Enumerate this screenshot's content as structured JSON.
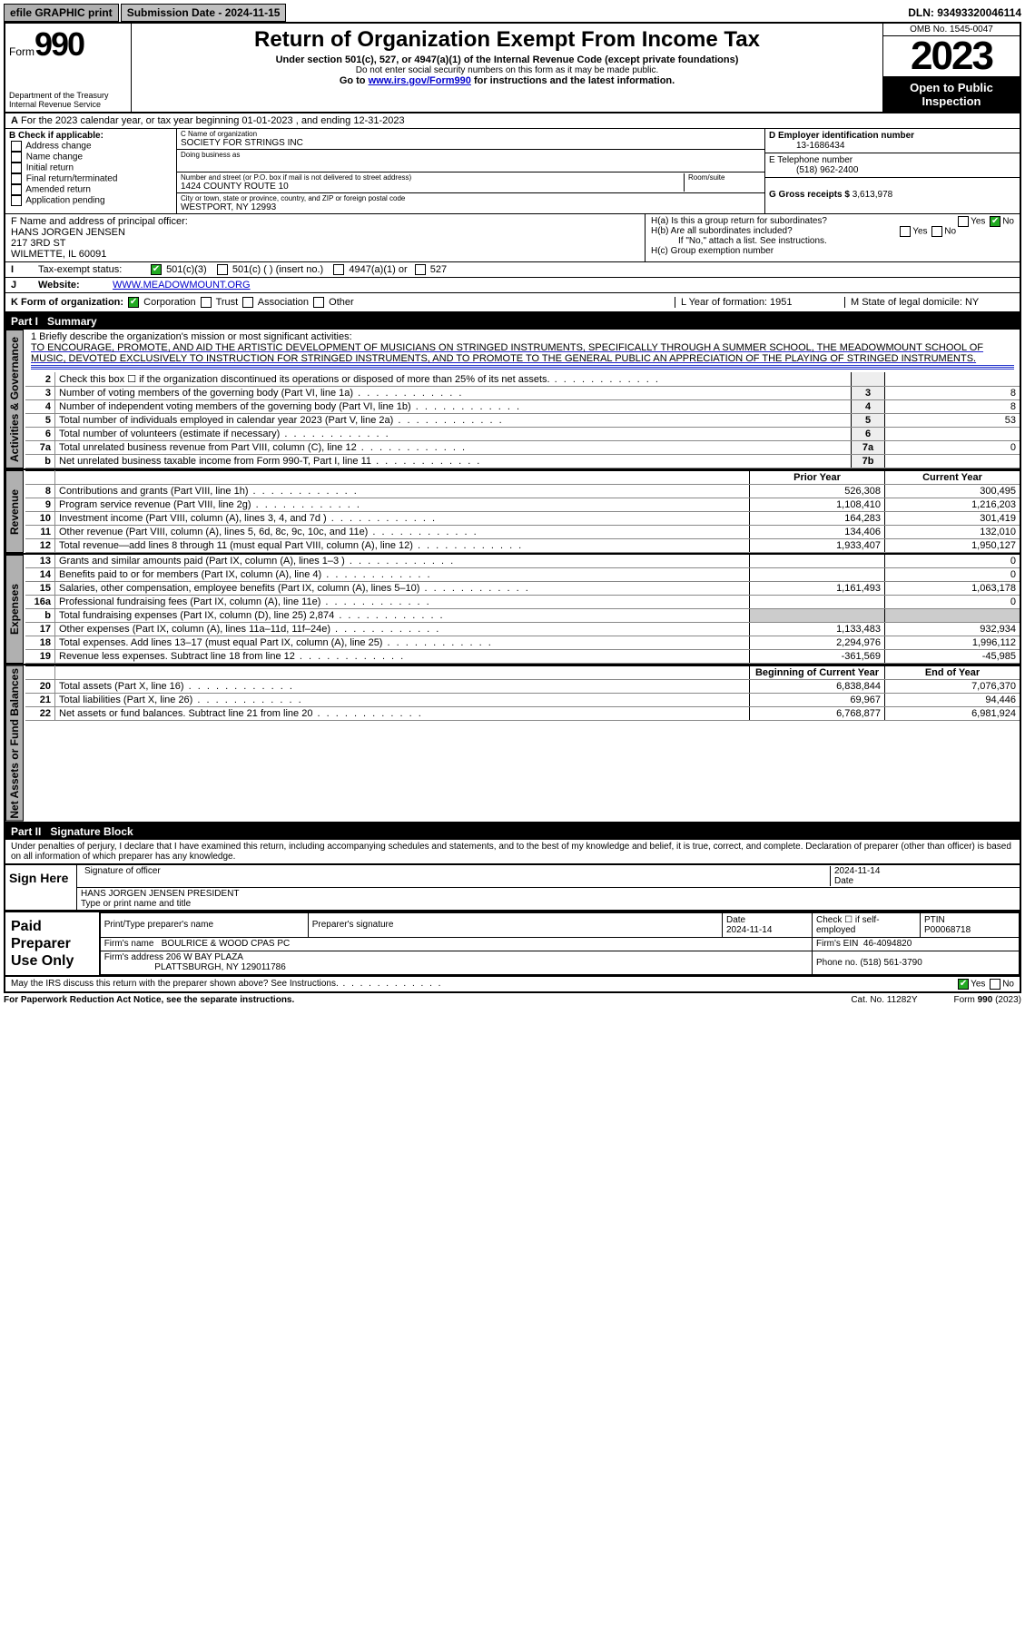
{
  "topbar": {
    "efile": "efile GRAPHIC print",
    "submission": "Submission Date - 2024-11-15",
    "dln": "DLN: 93493320046114"
  },
  "header": {
    "form_prefix": "Form",
    "form_number": "990",
    "dept": "Department of the Treasury",
    "irs": "Internal Revenue Service",
    "title": "Return of Organization Exempt From Income Tax",
    "subtitle": "Under section 501(c), 527, or 4947(a)(1) of the Internal Revenue Code (except private foundations)",
    "sub2": "Do not enter social security numbers on this form as it may be made public.",
    "sub3_pre": "Go to ",
    "sub3_link": "www.irs.gov/Form990",
    "sub3_post": " for instructions and the latest information.",
    "omb": "OMB No. 1545-0047",
    "year": "2023",
    "open": "Open to Public Inspection"
  },
  "line_a": "For the 2023 calendar year, or tax year beginning 01-01-2023   , and ending 12-31-2023",
  "box_b": {
    "title": "B Check if applicable:",
    "opts": [
      "Address change",
      "Name change",
      "Initial return",
      "Final return/terminated",
      "Amended return",
      "Application pending"
    ]
  },
  "box_c": {
    "name_lbl": "C Name of organization",
    "name": "SOCIETY FOR STRINGS INC",
    "dba_lbl": "Doing business as",
    "addr_lbl": "Number and street (or P.O. box if mail is not delivered to street address)",
    "room_lbl": "Room/suite",
    "addr": "1424 COUNTY ROUTE 10",
    "city_lbl": "City or town, state or province, country, and ZIP or foreign postal code",
    "city": "WESTPORT, NY  12993"
  },
  "box_d": {
    "lbl": "D Employer identification number",
    "val": "13-1686434"
  },
  "box_e": {
    "lbl": "E Telephone number",
    "val": "(518) 962-2400"
  },
  "box_g": {
    "lbl": "G Gross receipts $",
    "val": "3,613,978"
  },
  "box_f": {
    "lbl": "F  Name and address of principal officer:",
    "name": "HANS JORGEN JENSEN",
    "addr1": "217 3RD ST",
    "addr2": "WILMETTE, IL  60091"
  },
  "box_h": {
    "ha": "H(a)  Is this a group return for subordinates?",
    "hb": "H(b)  Are all subordinates included?",
    "hb2": "If \"No,\" attach a list. See instructions.",
    "hc": "H(c)  Group exemption number",
    "yes": "Yes",
    "no": "No"
  },
  "row_i": {
    "lbl": "I",
    "tax": "Tax-exempt status:",
    "c1": "501(c)(3)",
    "c2": "501(c) (  ) (insert no.)",
    "c3": "4947(a)(1) or",
    "c4": "527"
  },
  "row_j": {
    "lbl": "J",
    "web": "Website:",
    "val": "WWW.MEADOWMOUNT.ORG"
  },
  "row_k": {
    "lbl": "K Form of organization:",
    "opts": [
      "Corporation",
      "Trust",
      "Association",
      "Other"
    ],
    "l": "L Year of formation: 1951",
    "m": "M State of legal domicile: NY"
  },
  "part1": {
    "label": "Part I",
    "title": "Summary"
  },
  "mission": {
    "q": "1  Briefly describe the organization's mission or most significant activities:",
    "text": "TO ENCOURAGE, PROMOTE, AND AID THE ARTISTIC DEVELOPMENT OF MUSICIANS ON STRINGED INSTRUMENTS, SPECIFICALLY THROUGH A SUMMER SCHOOL, THE MEADOWMOUNT SCHOOL OF MUSIC, DEVOTED EXCLUSIVELY TO INSTRUCTION FOR STRINGED INSTRUMENTS, AND TO PROMOTE TO THE GENERAL PUBLIC AN APPRECIATION OF THE PLAYING OF STRINGED INSTRUMENTS."
  },
  "governance_lines": [
    {
      "n": "2",
      "d": "Check this box ☐ if the organization discontinued its operations or disposed of more than 25% of its net assets.",
      "box": "",
      "v": ""
    },
    {
      "n": "3",
      "d": "Number of voting members of the governing body (Part VI, line 1a)",
      "box": "3",
      "v": "8"
    },
    {
      "n": "4",
      "d": "Number of independent voting members of the governing body (Part VI, line 1b)",
      "box": "4",
      "v": "8"
    },
    {
      "n": "5",
      "d": "Total number of individuals employed in calendar year 2023 (Part V, line 2a)",
      "box": "5",
      "v": "53"
    },
    {
      "n": "6",
      "d": "Total number of volunteers (estimate if necessary)",
      "box": "6",
      "v": ""
    },
    {
      "n": "7a",
      "d": "Total unrelated business revenue from Part VIII, column (C), line 12",
      "box": "7a",
      "v": "0"
    },
    {
      "n": "b",
      "d": "Net unrelated business taxable income from Form 990-T, Part I, line 11",
      "box": "7b",
      "v": ""
    }
  ],
  "two_col_header": {
    "py": "Prior Year",
    "cy": "Current Year"
  },
  "revenue_lines": [
    {
      "n": "8",
      "d": "Contributions and grants (Part VIII, line 1h)",
      "py": "526,308",
      "cy": "300,495"
    },
    {
      "n": "9",
      "d": "Program service revenue (Part VIII, line 2g)",
      "py": "1,108,410",
      "cy": "1,216,203"
    },
    {
      "n": "10",
      "d": "Investment income (Part VIII, column (A), lines 3, 4, and 7d )",
      "py": "164,283",
      "cy": "301,419"
    },
    {
      "n": "11",
      "d": "Other revenue (Part VIII, column (A), lines 5, 6d, 8c, 9c, 10c, and 11e)",
      "py": "134,406",
      "cy": "132,010"
    },
    {
      "n": "12",
      "d": "Total revenue—add lines 8 through 11 (must equal Part VIII, column (A), line 12)",
      "py": "1,933,407",
      "cy": "1,950,127"
    }
  ],
  "expense_lines": [
    {
      "n": "13",
      "d": "Grants and similar amounts paid (Part IX, column (A), lines 1–3 )",
      "py": "",
      "cy": "0"
    },
    {
      "n": "14",
      "d": "Benefits paid to or for members (Part IX, column (A), line 4)",
      "py": "",
      "cy": "0"
    },
    {
      "n": "15",
      "d": "Salaries, other compensation, employee benefits (Part IX, column (A), lines 5–10)",
      "py": "1,161,493",
      "cy": "1,063,178"
    },
    {
      "n": "16a",
      "d": "Professional fundraising fees (Part IX, column (A), line 11e)",
      "py": "",
      "cy": "0"
    },
    {
      "n": "b",
      "d": "Total fundraising expenses (Part IX, column (D), line 25) 2,874",
      "py": "—shade—",
      "cy": "—shade—"
    },
    {
      "n": "17",
      "d": "Other expenses (Part IX, column (A), lines 11a–11d, 11f–24e)",
      "py": "1,133,483",
      "cy": "932,934"
    },
    {
      "n": "18",
      "d": "Total expenses. Add lines 13–17 (must equal Part IX, column (A), line 25)",
      "py": "2,294,976",
      "cy": "1,996,112"
    },
    {
      "n": "19",
      "d": "Revenue less expenses. Subtract line 18 from line 12",
      "py": "-361,569",
      "cy": "-45,985"
    }
  ],
  "netassets_header": {
    "py": "Beginning of Current Year",
    "cy": "End of Year"
  },
  "netassets_lines": [
    {
      "n": "20",
      "d": "Total assets (Part X, line 16)",
      "py": "6,838,844",
      "cy": "7,076,370"
    },
    {
      "n": "21",
      "d": "Total liabilities (Part X, line 26)",
      "py": "69,967",
      "cy": "94,446"
    },
    {
      "n": "22",
      "d": "Net assets or fund balances. Subtract line 21 from line 20",
      "py": "6,768,877",
      "cy": "6,981,924"
    }
  ],
  "part2": {
    "label": "Part II",
    "title": "Signature Block"
  },
  "perjury": "Under penalties of perjury, I declare that I have examined this return, including accompanying schedules and statements, and to the best of my knowledge and belief, it is true, correct, and complete. Declaration of preparer (other than officer) is based on all information of which preparer has any knowledge.",
  "sign": {
    "here": "Sign Here",
    "sig_lbl": "Signature of officer",
    "date_lbl": "Date",
    "date": "2024-11-14",
    "name": "HANS JORGEN JENSEN  PRESIDENT",
    "typelbl": "Type or print name and title"
  },
  "paid": {
    "label": "Paid Preparer Use Only",
    "h1": "Print/Type preparer's name",
    "h2": "Preparer's signature",
    "h3": "Date",
    "h4": "Check ☐ if self-employed",
    "h5": "PTIN",
    "date": "2024-11-14",
    "ptin": "P00068718",
    "firm_lbl": "Firm's name",
    "firm": "BOULRICE & WOOD CPAS PC",
    "ein_lbl": "Firm's EIN",
    "ein": "46-4094820",
    "addr_lbl": "Firm's address",
    "addr1": "206 W BAY PLAZA",
    "addr2": "PLATTSBURGH, NY  129011786",
    "phone_lbl": "Phone no.",
    "phone": "(518) 561-3790"
  },
  "discuss": "May the IRS discuss this return with the preparer shown above? See Instructions.",
  "footer": {
    "pra": "For Paperwork Reduction Act Notice, see the separate instructions.",
    "cat": "Cat. No. 11282Y",
    "form": "Form 990 (2023)"
  },
  "tabs": {
    "gov": "Activities & Governance",
    "rev": "Revenue",
    "exp": "Expenses",
    "net": "Net Assets or Fund Balances"
  }
}
